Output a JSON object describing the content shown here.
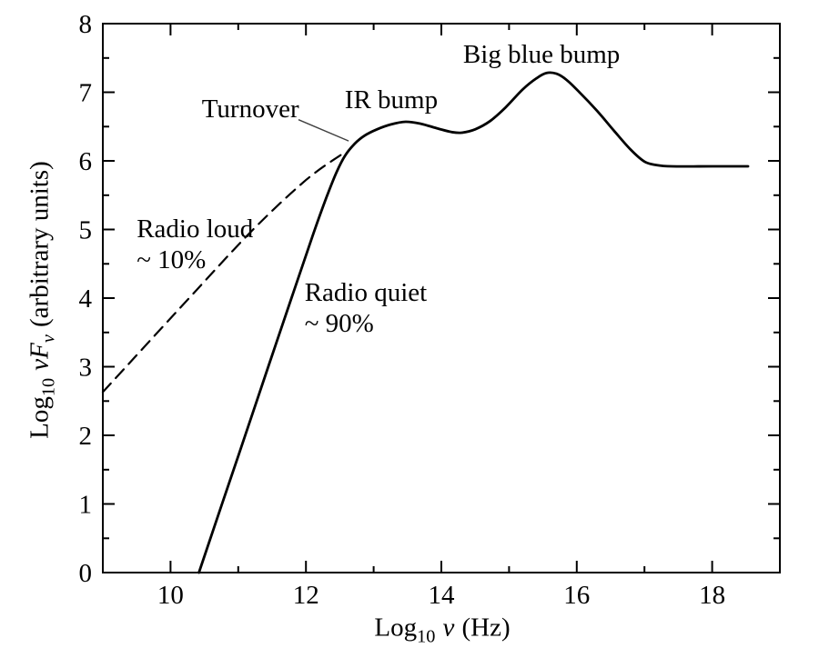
{
  "figure": {
    "background": "#ffffff",
    "ink_color": "#000000",
    "leader_color": "#404040"
  },
  "chart_data": {
    "type": "line",
    "title": "",
    "xlabel_parts": {
      "log": "Log",
      "sub": "10",
      "nu": "ν",
      "unit": "(Hz)"
    },
    "ylabel_parts": {
      "log": "Log",
      "sub": "10",
      "nuF": "νF",
      "fsub": "ν",
      "unit": "(arbitrary units)"
    },
    "xlim": [
      9,
      19
    ],
    "ylim": [
      0,
      8
    ],
    "grid": false,
    "legend": "none (labels annotated on plot)",
    "x_major_ticks": [
      10,
      12,
      14,
      16,
      18
    ],
    "x_minor_ticks": [
      11,
      13,
      15,
      17
    ],
    "x_tick_labels": [
      "10",
      "12",
      "14",
      "16",
      "18"
    ],
    "y_major_ticks": [
      1,
      2,
      3,
      4,
      5,
      6,
      7
    ],
    "y_minor_ticks": [
      0.5,
      1.5,
      2.5,
      3.5,
      4.5,
      5.5,
      6.5,
      7.5
    ],
    "y_label_values": [
      0,
      1,
      2,
      3,
      4,
      5,
      6,
      7,
      8
    ],
    "y_tick_labels": [
      "0",
      "1",
      "2",
      "3",
      "4",
      "5",
      "6",
      "7",
      "8"
    ],
    "series": [
      {
        "name": "Radio quiet ~ 90%",
        "style": "solid",
        "points": [
          [
            10.42,
            0
          ],
          [
            10.75,
            0.97
          ],
          [
            11.1,
            1.99
          ],
          [
            11.45,
            3.02
          ],
          [
            11.8,
            4.04
          ],
          [
            12.1,
            4.91
          ],
          [
            12.3,
            5.46
          ],
          [
            12.45,
            5.83
          ],
          [
            12.58,
            6.08
          ],
          [
            12.72,
            6.25
          ],
          [
            12.87,
            6.37
          ],
          [
            13.05,
            6.46
          ],
          [
            13.25,
            6.53
          ],
          [
            13.47,
            6.57
          ],
          [
            13.7,
            6.54
          ],
          [
            13.95,
            6.47
          ],
          [
            14.15,
            6.42
          ],
          [
            14.3,
            6.41
          ],
          [
            14.5,
            6.46
          ],
          [
            14.72,
            6.58
          ],
          [
            14.95,
            6.78
          ],
          [
            15.2,
            7.04
          ],
          [
            15.4,
            7.2
          ],
          [
            15.55,
            7.28
          ],
          [
            15.7,
            7.27
          ],
          [
            15.85,
            7.18
          ],
          [
            16.05,
            6.99
          ],
          [
            16.3,
            6.73
          ],
          [
            16.55,
            6.44
          ],
          [
            16.8,
            6.16
          ],
          [
            17.0,
            5.99
          ],
          [
            17.17,
            5.94
          ],
          [
            17.4,
            5.92
          ],
          [
            18.0,
            5.92
          ],
          [
            18.53,
            5.92
          ]
        ]
      },
      {
        "name": "Radio loud ~ 10%",
        "style": "dashed",
        "points": [
          [
            9.0,
            2.63
          ],
          [
            10.2,
            3.92
          ],
          [
            11.2,
            4.98
          ],
          [
            12.0,
            5.72
          ],
          [
            12.52,
            6.09
          ]
        ]
      }
    ],
    "annotations": [
      {
        "id": "turnover",
        "text": "Turnover",
        "x": 11.18,
        "y": 6.74,
        "anchor": "center",
        "leader": {
          "x1": 11.89,
          "y1": 6.6,
          "x2": 12.63,
          "y2": 6.29
        }
      },
      {
        "id": "ir-bump",
        "text": "IR bump",
        "x": 13.26,
        "y": 6.87,
        "anchor": "center"
      },
      {
        "id": "big-blue-bump",
        "text": "Big blue bump",
        "x": 15.48,
        "y": 7.54,
        "anchor": "center"
      },
      {
        "id": "radio-loud",
        "text": "Radio loud\n~ 10%",
        "x": 9.5,
        "y": 5.22,
        "anchor": "top-left"
      },
      {
        "id": "radio-quiet",
        "text": "Radio quiet\n~ 90%",
        "x": 11.98,
        "y": 4.29,
        "anchor": "top-left"
      }
    ]
  }
}
